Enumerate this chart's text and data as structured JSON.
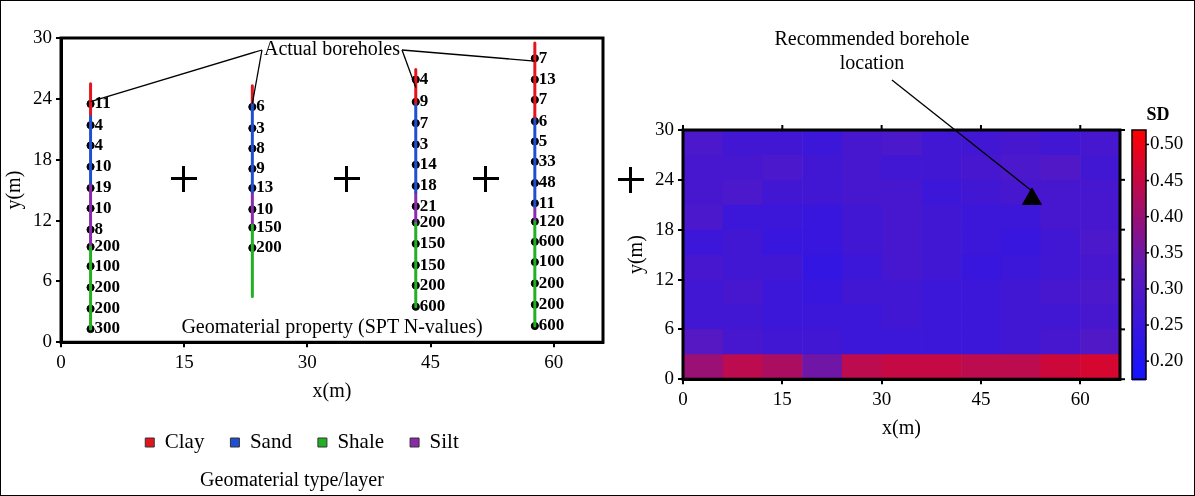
{
  "chart_data": [
    {
      "type": "line",
      "xlabel": "x(m)",
      "ylabel": "y(m)",
      "xlim": [
        0,
        66
      ],
      "ylim": [
        0,
        30
      ],
      "xticks": [
        0,
        15,
        30,
        45,
        60
      ],
      "yticks": [
        0,
        6,
        12,
        18,
        24,
        30
      ],
      "grid": false,
      "legend": "bottom",
      "annotations": [
        {
          "text": "Actual boreholes",
          "x": 23.3,
          "y": 25.3
        },
        {
          "text": "11",
          "x": 3.6,
          "y": 23.5
        },
        {
          "text": "4",
          "x": 3.6,
          "y": 21.4
        },
        {
          "text": "4",
          "x": 3.6,
          "y": 19.4
        },
        {
          "text": "10",
          "x": 3.6,
          "y": 17.3
        },
        {
          "text": "19",
          "x": 3.6,
          "y": 15.2
        },
        {
          "text": "10",
          "x": 3.6,
          "y": 13.2
        },
        {
          "text": "8",
          "x": 3.6,
          "y": 11.1
        },
        {
          "text": "200",
          "x": 3.6,
          "y": 9.4
        },
        {
          "text": "100",
          "x": 3.6,
          "y": 7.5
        },
        {
          "text": "200",
          "x": 3.6,
          "y": 5.4
        },
        {
          "text": "200",
          "x": 3.6,
          "y": 3.3
        },
        {
          "text": "300",
          "x": 3.6,
          "y": 1.3
        },
        {
          "text": "6",
          "x": 23.3,
          "y": 23.2
        },
        {
          "text": "3",
          "x": 23.3,
          "y": 21.1
        },
        {
          "text": "8",
          "x": 23.3,
          "y": 19.1
        },
        {
          "text": "9",
          "x": 23.3,
          "y": 17.1
        },
        {
          "text": "13",
          "x": 23.3,
          "y": 15.2
        },
        {
          "text": "10",
          "x": 23.3,
          "y": 13.1
        },
        {
          "text": "150",
          "x": 23.3,
          "y": 11.3
        },
        {
          "text": "200",
          "x": 23.3,
          "y": 9.3
        },
        {
          "text": "4",
          "x": 43.2,
          "y": 25.9
        },
        {
          "text": "9",
          "x": 43.2,
          "y": 23.7
        },
        {
          "text": "7",
          "x": 43.2,
          "y": 21.6
        },
        {
          "text": "3",
          "x": 43.2,
          "y": 19.5
        },
        {
          "text": "14",
          "x": 43.2,
          "y": 17.5
        },
        {
          "text": "18",
          "x": 43.2,
          "y": 15.4
        },
        {
          "text": "21",
          "x": 43.2,
          "y": 13.4
        },
        {
          "text": "200",
          "x": 43.2,
          "y": 11.8
        },
        {
          "text": "150",
          "x": 43.2,
          "y": 9.7
        },
        {
          "text": "150",
          "x": 43.2,
          "y": 7.6
        },
        {
          "text": "200",
          "x": 43.2,
          "y": 5.6
        },
        {
          "text": "600",
          "x": 43.2,
          "y": 3.5
        },
        {
          "text": "7",
          "x": 57.7,
          "y": 28.0
        },
        {
          "text": "13",
          "x": 57.7,
          "y": 25.9
        },
        {
          "text": "7",
          "x": 57.7,
          "y": 23.9
        },
        {
          "text": "6",
          "x": 57.7,
          "y": 21.8
        },
        {
          "text": "5",
          "x": 57.7,
          "y": 19.8
        },
        {
          "text": "33",
          "x": 57.7,
          "y": 17.8
        },
        {
          "text": "48",
          "x": 57.7,
          "y": 15.7
        },
        {
          "text": "11",
          "x": 57.7,
          "y": 13.7
        },
        {
          "text": "120",
          "x": 57.7,
          "y": 11.9
        },
        {
          "text": "600",
          "x": 57.7,
          "y": 9.9
        },
        {
          "text": "100",
          "x": 57.7,
          "y": 7.9
        },
        {
          "text": "200",
          "x": 57.7,
          "y": 5.8
        },
        {
          "text": "200",
          "x": 57.7,
          "y": 3.7
        },
        {
          "text": "600",
          "x": 57.7,
          "y": 1.6
        },
        "Geomaterial property (SPT N-values)",
        "Geomaterial type/layer"
      ],
      "series": [
        {
          "name": "Clay",
          "type": "line",
          "color": "#e3141c",
          "marker": "none",
          "x": [
            3.6,
            3.6,
            null,
            23.3,
            23.3,
            null,
            43.2,
            43.2,
            null,
            57.7,
            57.7
          ],
          "values": [
            25.5,
            22.5,
            null,
            25.3,
            23.7,
            null,
            26.9,
            23.6,
            null,
            29.5,
            22.2
          ]
        },
        {
          "name": "Sand",
          "type": "line",
          "color": "#1f4fd0",
          "marker": "none",
          "x": [
            3.6,
            3.6,
            null,
            23.3,
            23.3,
            null,
            43.2,
            43.2,
            null,
            57.7,
            57.7
          ],
          "values": [
            22.5,
            15.7,
            null,
            23.7,
            14.8,
            null,
            23.6,
            14.8,
            null,
            22.2,
            13.4
          ]
        },
        {
          "name": "Shale",
          "type": "line",
          "color": "#22b022",
          "marker": "none",
          "x": [
            3.6,
            3.6,
            null,
            23.3,
            23.3,
            null,
            43.2,
            43.2,
            null,
            57.7,
            57.7
          ],
          "values": [
            9.4,
            1.3,
            null,
            11.5,
            4.5,
            null,
            11.7,
            3.5,
            null,
            11.9,
            1.6
          ]
        },
        {
          "name": "Silt",
          "type": "line",
          "color": "#8a2aa8",
          "marker": "none",
          "x": [
            3.6,
            3.6,
            null,
            23.3,
            23.3,
            null,
            43.2,
            43.2,
            null,
            57.7,
            57.7
          ],
          "values": [
            15.7,
            9.4,
            null,
            14.8,
            11.5,
            null,
            14.8,
            11.7,
            null,
            13.4,
            11.9
          ]
        },
        {
          "type": "scatter",
          "color": "#000000",
          "marker": "circle",
          "x": [
            3.6,
            3.6,
            3.6,
            3.6,
            3.6,
            3.6,
            3.6,
            3.6,
            3.6,
            3.6,
            3.6,
            3.6,
            23.3,
            23.3,
            23.3,
            23.3,
            23.3,
            23.3,
            23.3,
            23.3,
            43.2,
            43.2,
            43.2,
            43.2,
            43.2,
            43.2,
            43.2,
            43.2,
            43.2,
            43.2,
            43.2,
            43.2,
            57.7,
            57.7,
            57.7,
            57.7,
            57.7,
            57.7,
            57.7,
            57.7,
            57.7,
            57.7,
            57.7,
            57.7,
            57.7,
            57.7
          ],
          "values": [
            23.5,
            21.4,
            19.4,
            17.3,
            15.2,
            13.2,
            11.1,
            9.4,
            7.5,
            5.4,
            3.3,
            1.3,
            23.2,
            21.1,
            19.1,
            17.1,
            15.2,
            13.1,
            11.3,
            9.3,
            25.9,
            23.7,
            21.6,
            19.5,
            17.5,
            15.4,
            13.4,
            11.8,
            9.7,
            7.6,
            5.6,
            3.5,
            28.0,
            25.9,
            23.9,
            21.8,
            19.8,
            17.8,
            15.7,
            13.7,
            11.9,
            9.9,
            7.9,
            5.8,
            3.7,
            1.6
          ]
        }
      ]
    },
    {
      "type": "heatmap",
      "xlabel": "x(m)",
      "ylabel": "y(m)",
      "clabel": "SD",
      "xlim": [
        0,
        66
      ],
      "ylim": [
        0,
        30
      ],
      "xticks": [
        0,
        15,
        30,
        45,
        60
      ],
      "yticks": [
        0,
        6,
        12,
        18,
        24,
        30
      ],
      "clim": [
        0.175,
        0.52
      ],
      "cticks": [
        {
          "value": 0.2,
          "label": "0.20"
        },
        0.25,
        {
          "value": 0.3,
          "label": "0.30"
        },
        0.35,
        {
          "value": 0.4,
          "label": "0.40"
        },
        0.45,
        {
          "value": 0.5,
          "label": "0.50"
        }
      ],
      "cells": [
        [
          0.29,
          0.27,
          0.27,
          0.26,
          0.28,
          0.29,
          0.27,
          0.27,
          0.28,
          0.27,
          0.28
        ],
        [
          0.28,
          0.28,
          0.29,
          0.27,
          0.28,
          0.27,
          0.27,
          0.28,
          0.29,
          0.3,
          0.27
        ],
        [
          0.28,
          0.29,
          0.27,
          0.27,
          0.28,
          0.28,
          0.26,
          0.27,
          0.28,
          0.28,
          0.28
        ],
        [
          0.29,
          0.26,
          0.26,
          0.25,
          0.27,
          0.28,
          0.27,
          0.26,
          0.26,
          0.28,
          0.28
        ],
        [
          0.26,
          0.27,
          0.25,
          0.25,
          0.27,
          0.28,
          0.27,
          0.26,
          0.25,
          0.27,
          0.29
        ],
        [
          0.28,
          0.27,
          0.27,
          0.24,
          0.26,
          0.28,
          0.27,
          0.25,
          0.26,
          0.27,
          0.28
        ],
        [
          0.27,
          0.28,
          0.26,
          0.25,
          0.27,
          0.27,
          0.26,
          0.26,
          0.27,
          0.28,
          0.29
        ],
        [
          0.27,
          0.27,
          0.26,
          0.26,
          0.26,
          0.27,
          0.26,
          0.26,
          0.27,
          0.27,
          0.28
        ],
        [
          0.31,
          0.28,
          0.27,
          0.27,
          0.26,
          0.26,
          0.26,
          0.26,
          0.27,
          0.28,
          0.3
        ],
        [
          0.4,
          0.44,
          0.42,
          0.35,
          0.44,
          0.45,
          0.45,
          0.44,
          0.44,
          0.46,
          0.47
        ]
      ],
      "annotations": [
        {
          "text": "Recommended borehole location",
          "x": 52.7,
          "y": 21.7
        }
      ],
      "series": [
        {
          "type": "scatter",
          "color": "#000000",
          "marker": "triangle",
          "x": [
            52.7
          ],
          "values": [
            21.7
          ]
        }
      ]
    }
  ]
}
